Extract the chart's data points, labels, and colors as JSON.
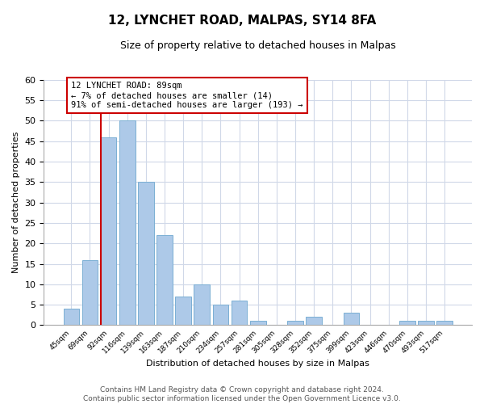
{
  "title": "12, LYNCHET ROAD, MALPAS, SY14 8FA",
  "subtitle": "Size of property relative to detached houses in Malpas",
  "xlabel": "Distribution of detached houses by size in Malpas",
  "ylabel": "Number of detached properties",
  "bar_labels": [
    "45sqm",
    "69sqm",
    "92sqm",
    "116sqm",
    "139sqm",
    "163sqm",
    "187sqm",
    "210sqm",
    "234sqm",
    "257sqm",
    "281sqm",
    "305sqm",
    "328sqm",
    "352sqm",
    "375sqm",
    "399sqm",
    "423sqm",
    "446sqm",
    "470sqm",
    "493sqm",
    "517sqm"
  ],
  "bar_heights": [
    4,
    16,
    46,
    50,
    35,
    22,
    7,
    10,
    5,
    6,
    1,
    0,
    1,
    2,
    0,
    3,
    0,
    0,
    1,
    1,
    1
  ],
  "bar_color": "#adc9e8",
  "bar_edge_color": "#7bafd4",
  "highlight_bar_index": 2,
  "highlight_color": "#cc0000",
  "ylim": [
    0,
    60
  ],
  "yticks": [
    0,
    5,
    10,
    15,
    20,
    25,
    30,
    35,
    40,
    45,
    50,
    55,
    60
  ],
  "annotation_title": "12 LYNCHET ROAD: 89sqm",
  "annotation_line1": "← 7% of detached houses are smaller (14)",
  "annotation_line2": "91% of semi-detached houses are larger (193) →",
  "footer_line1": "Contains HM Land Registry data © Crown copyright and database right 2024.",
  "footer_line2": "Contains public sector information licensed under the Open Government Licence v3.0.",
  "background_color": "#ffffff",
  "grid_color": "#d0d8e8"
}
